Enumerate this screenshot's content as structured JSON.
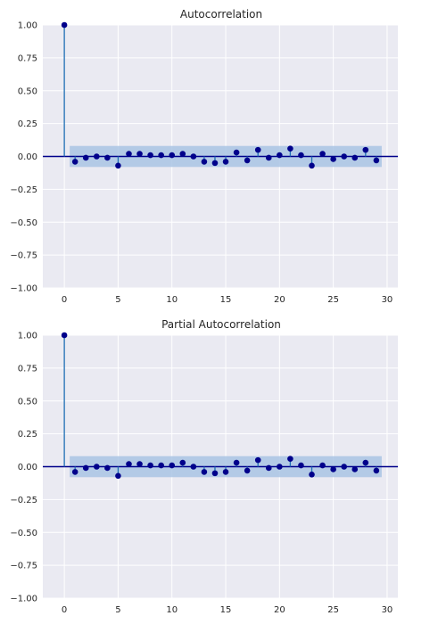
{
  "chart_data": [
    {
      "type": "stem",
      "title": "Autocorrelation",
      "xlabel": "",
      "ylabel": "",
      "xlim": [
        -2,
        31
      ],
      "ylim": [
        -1.0,
        1.0
      ],
      "x_ticks": [
        0,
        5,
        10,
        15,
        20,
        25,
        30
      ],
      "y_ticks": [
        1.0,
        0.75,
        0.5,
        0.25,
        0.0,
        -0.25,
        -0.5,
        -0.75,
        -1.0
      ],
      "x_tick_labels": [
        "0",
        "5",
        "10",
        "15",
        "20",
        "25",
        "30"
      ],
      "y_tick_labels": [
        "1.00",
        "0.75",
        "0.50",
        "0.25",
        "0.00",
        "−0.25",
        "−0.50",
        "−0.75",
        "−1.00"
      ],
      "grid": true,
      "lags": [
        0,
        1,
        2,
        3,
        4,
        5,
        6,
        7,
        8,
        9,
        10,
        11,
        12,
        13,
        14,
        15,
        16,
        17,
        18,
        19,
        20,
        21,
        22,
        23,
        24,
        25,
        26,
        27,
        28,
        29
      ],
      "values": [
        1.0,
        -0.04,
        -0.01,
        0.0,
        -0.01,
        -0.07,
        0.02,
        0.02,
        0.01,
        0.01,
        0.01,
        0.02,
        0.0,
        -0.04,
        -0.05,
        -0.04,
        0.03,
        -0.03,
        0.05,
        -0.01,
        0.01,
        0.06,
        0.01,
        -0.07,
        0.02,
        -0.02,
        0.0,
        -0.01,
        0.05,
        -0.03
      ],
      "confidence_band": [
        0.08,
        -0.08
      ],
      "colors": {
        "marker": "#00008b",
        "stem": "#1f6fb4",
        "zero_line": "#00008b",
        "band": "#a9c4e4",
        "background": "#eaeaf2",
        "grid": "#ffffff"
      }
    },
    {
      "type": "stem",
      "title": "Partial Autocorrelation",
      "xlabel": "",
      "ylabel": "",
      "xlim": [
        -2,
        31
      ],
      "ylim": [
        -1.0,
        1.0
      ],
      "x_ticks": [
        0,
        5,
        10,
        15,
        20,
        25,
        30
      ],
      "y_ticks": [
        1.0,
        0.75,
        0.5,
        0.25,
        0.0,
        -0.25,
        -0.5,
        -0.75,
        -1.0
      ],
      "x_tick_labels": [
        "0",
        "5",
        "10",
        "15",
        "20",
        "25",
        "30"
      ],
      "y_tick_labels": [
        "1.00",
        "0.75",
        "0.50",
        "0.25",
        "0.00",
        "−0.25",
        "−0.50",
        "−0.75",
        "−1.00"
      ],
      "grid": true,
      "lags": [
        0,
        1,
        2,
        3,
        4,
        5,
        6,
        7,
        8,
        9,
        10,
        11,
        12,
        13,
        14,
        15,
        16,
        17,
        18,
        19,
        20,
        21,
        22,
        23,
        24,
        25,
        26,
        27,
        28,
        29
      ],
      "values": [
        1.0,
        -0.04,
        -0.01,
        0.0,
        -0.01,
        -0.07,
        0.02,
        0.02,
        0.01,
        0.01,
        0.01,
        0.03,
        0.0,
        -0.04,
        -0.05,
        -0.04,
        0.03,
        -0.03,
        0.05,
        -0.01,
        0.0,
        0.06,
        0.01,
        -0.06,
        0.01,
        -0.02,
        0.0,
        -0.02,
        0.03,
        -0.03
      ],
      "confidence_band": [
        0.08,
        -0.08
      ],
      "colors": {
        "marker": "#00008b",
        "stem": "#1f6fb4",
        "zero_line": "#00008b",
        "band": "#a9c4e4",
        "background": "#eaeaf2",
        "grid": "#ffffff"
      }
    }
  ]
}
